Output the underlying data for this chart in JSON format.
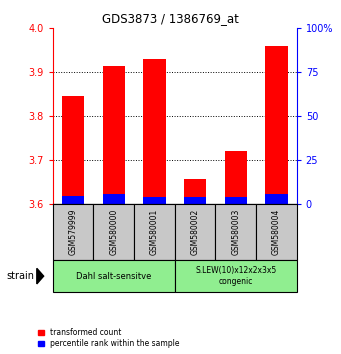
{
  "title": "GDS3873 / 1386769_at",
  "samples": [
    "GSM579999",
    "GSM580000",
    "GSM580001",
    "GSM580002",
    "GSM580003",
    "GSM580004"
  ],
  "red_values": [
    3.845,
    3.915,
    3.93,
    3.655,
    3.72,
    3.96
  ],
  "blue_values": [
    3.618,
    3.622,
    3.614,
    3.614,
    3.614,
    3.622
  ],
  "bar_base": 3.6,
  "ylim_min": 3.6,
  "ylim_max": 4.0,
  "yticks_left": [
    3.6,
    3.7,
    3.8,
    3.9,
    4.0
  ],
  "yticks_right": [
    0,
    25,
    50,
    75,
    100
  ],
  "ytick_right_labels": [
    "0",
    "25",
    "50",
    "75",
    "100%"
  ],
  "group1_label": "Dahl salt-sensitve",
  "group2_label": "S.LEW(10)x12x2x3x5\ncongenic",
  "group1_color": "#90EE90",
  "group2_color": "#90EE90",
  "sample_bg_color": "#C8C8C8",
  "bar_width": 0.55,
  "legend_red": "transformed count",
  "legend_blue": "percentile rank within the sample",
  "axis_left_color": "red",
  "axis_right_color": "blue",
  "strain_label": "strain"
}
